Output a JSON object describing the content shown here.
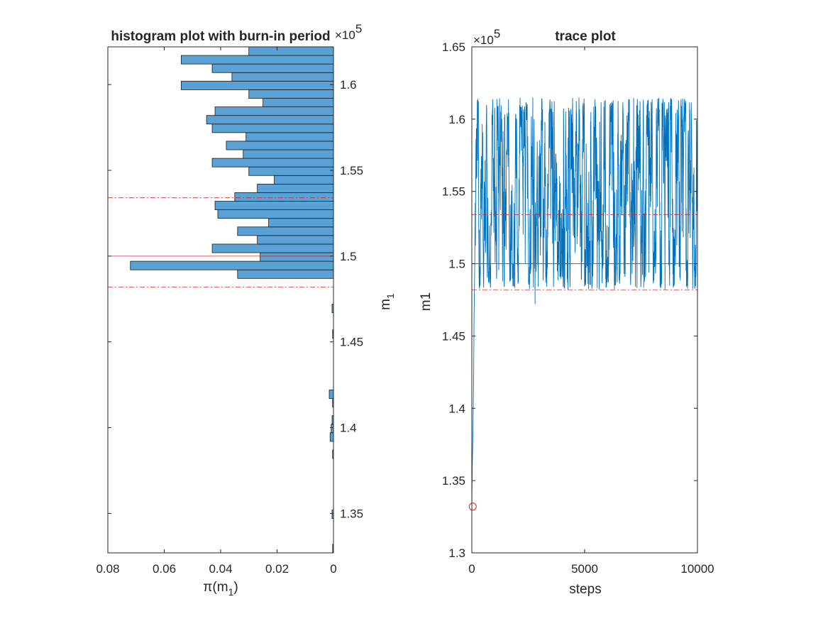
{
  "colors": {
    "bar_fill": "#5aa2d6",
    "bar_edge": "#1a1a1a",
    "trace": "#0072bd",
    "ref": "#d62728",
    "axis": "#262626"
  },
  "chart_data": [
    {
      "type": "bar",
      "orientation": "horizontal",
      "title": "histogram plot with burn-in period",
      "xlabel": "π(m",
      "xlabel_sub": "1",
      "xlabel_close": ")",
      "ylabel": "m",
      "ylabel_sub": "1",
      "exponent": "×10",
      "exponent_power": "5",
      "x_reversed": true,
      "xlim": [
        0,
        0.08
      ],
      "ylim": [
        132700,
        162200
      ],
      "xticks": [
        0.08,
        0.06,
        0.04,
        0.02,
        0
      ],
      "xtick_labels": [
        "0.08",
        "0.06",
        "0.04",
        "0.02",
        "0"
      ],
      "yticks": [
        135000,
        140000,
        145000,
        150000,
        155000,
        160000
      ],
      "ytick_labels": [
        "1.35",
        "1.4",
        "1.45",
        "1.5",
        "1.55",
        "1.6"
      ],
      "bin_width": 500,
      "bin_centers": [
        132950,
        133450,
        133950,
        134450,
        134950,
        135450,
        135950,
        136450,
        136950,
        137450,
        137950,
        138450,
        138950,
        139450,
        139950,
        140450,
        140950,
        141450,
        141950,
        142450,
        142950,
        143450,
        143950,
        144450,
        144950,
        145450,
        145950,
        146450,
        146950,
        147450,
        147950,
        148450,
        148950,
        149450,
        149950,
        150450,
        150950,
        151450,
        151950,
        152450,
        152950,
        153450,
        153950,
        154450,
        154950,
        155450,
        155950,
        156450,
        156950,
        157450,
        157950,
        158450,
        158950,
        159450,
        159950,
        160450,
        160950,
        161450,
        161950
      ],
      "values": [
        0.0003,
        0,
        0,
        0,
        0.0005,
        0,
        0,
        0,
        0,
        0,
        0,
        0.0003,
        0,
        0.0012,
        0.0008,
        0.0005,
        0,
        0.0003,
        0.0015,
        0,
        0,
        0,
        0,
        0,
        0,
        0.0003,
        0,
        0,
        0.0005,
        0,
        0,
        0,
        0.034,
        0.072,
        0.026,
        0.043,
        0.027,
        0.034,
        0.023,
        0.041,
        0.042,
        0.035,
        0.027,
        0.021,
        0.03,
        0.043,
        0.032,
        0.038,
        0.031,
        0.043,
        0.045,
        0.042,
        0.025,
        0.03,
        0.054,
        0.036,
        0.043,
        0.054,
        0.03
      ],
      "ref_lines": [
        {
          "value": 150000,
          "style": "solid"
        },
        {
          "value": 148200,
          "style": "dashdot"
        },
        {
          "value": 153400,
          "style": "dashdot"
        }
      ]
    },
    {
      "type": "line",
      "title": "trace plot",
      "xlabel": "steps",
      "ylabel": "m1",
      "exponent": "×10",
      "exponent_power": "5",
      "xlim": [
        0,
        10000
      ],
      "ylim": [
        130000,
        165000
      ],
      "xticks": [
        0,
        5000,
        10000
      ],
      "xtick_labels": [
        "0",
        "5000",
        "10000"
      ],
      "yticks": [
        130000,
        135000,
        140000,
        145000,
        150000,
        155000,
        160000,
        165000
      ],
      "ytick_labels": [
        "1.3",
        "1.35",
        "1.4",
        "1.45",
        "1.5",
        "1.55",
        "1.6",
        "1.65"
      ],
      "series": [
        {
          "x_start": 0,
          "x_end": 10000,
          "burn_in": [
            [
              0,
              133200
            ],
            [
              20,
              136000
            ],
            [
              50,
              138500
            ],
            [
              80,
              142000
            ],
            [
              100,
              146500
            ],
            [
              130,
              150000
            ]
          ],
          "y_min": 148200,
          "y_max": 161500,
          "outlier": [
            2800,
            147200
          ]
        }
      ],
      "start_marker": {
        "x": 40,
        "y": 133200
      },
      "ref_lines": [
        {
          "value": 150000,
          "style": "solid"
        },
        {
          "value": 148200,
          "style": "dashdot"
        },
        {
          "value": 153400,
          "style": "dashdot"
        }
      ]
    }
  ]
}
